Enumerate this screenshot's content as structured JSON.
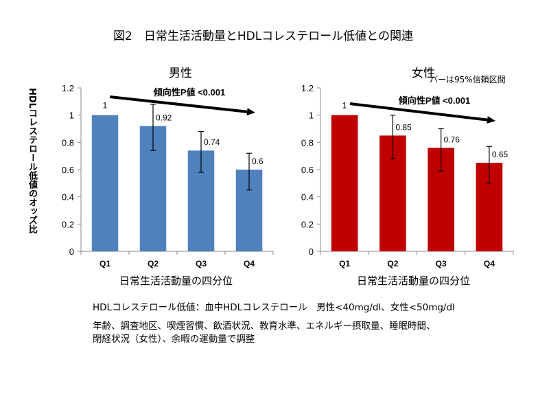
{
  "figure": {
    "title": "図2　日常生活活動量とHDLコレステロール低値との関連",
    "ci_note": "バーは95%信頼区間",
    "y_axis_label": "HDLコレステロール低値のオッズ比"
  },
  "notes": {
    "line1": "HDLコレステロール低値：血中HDLコレステロール　男性<40mg/dl、女性<50mg/dl",
    "line2": "年齢、調査地区、喫煙習慣、飲酒状況、教育水準、エネルギー摂取量、睡眠時間、",
    "line3": "閉経状況（女性）、余暇の運動量で調整"
  },
  "chart_data": [
    {
      "type": "bar",
      "title": "男性",
      "xlabel": "日常生活活動量の四分位",
      "ylabel": "HDLコレステロール低値のオッズ比",
      "categories": [
        "Q1",
        "Q2",
        "Q3",
        "Q4"
      ],
      "values": [
        1,
        0.92,
        0.74,
        0.6
      ],
      "value_labels": [
        "1",
        "0.92",
        "0.74",
        "0.6"
      ],
      "ci_low": [
        1,
        0.74,
        0.58,
        0.45
      ],
      "ci_high": [
        1,
        1.08,
        0.88,
        0.72
      ],
      "ylim": [
        0,
        1.2
      ],
      "yticks": [
        "0",
        "0.2",
        "0.4",
        "0.6",
        "0.8",
        "1",
        "1.2"
      ],
      "bar_color": "#4f81bd",
      "trend_label": "傾向性P値 <0.001",
      "grid": false
    },
    {
      "type": "bar",
      "title": "女性",
      "xlabel": "日常生活活動量の四分位",
      "ylabel": "HDLコレステロール低値のオッズ比",
      "categories": [
        "Q1",
        "Q2",
        "Q3",
        "Q4"
      ],
      "values": [
        1,
        0.85,
        0.76,
        0.65
      ],
      "value_labels": [
        "1",
        "0.85",
        "0.76",
        "0.65"
      ],
      "ci_low": [
        1,
        0.68,
        0.59,
        0.5
      ],
      "ci_high": [
        1,
        1.0,
        0.9,
        0.77
      ],
      "ylim": [
        0,
        1.2
      ],
      "yticks": [
        "0",
        "0.2",
        "0.4",
        "0.6",
        "0.8",
        "1",
        "1.2"
      ],
      "bar_color": "#c00000",
      "trend_label": "傾向性P値 <0.001",
      "grid": false
    }
  ]
}
